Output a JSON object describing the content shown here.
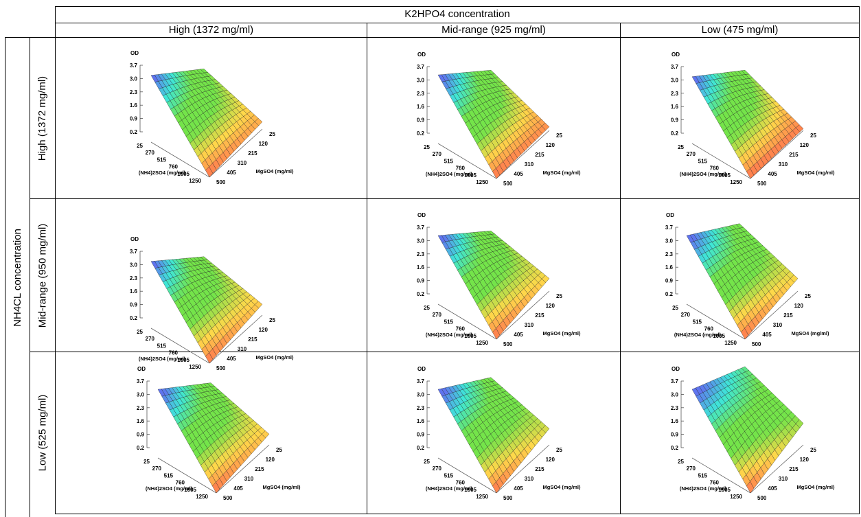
{
  "table": {
    "column_group_header": "K2HPO4 concentration",
    "column_headers": [
      "High (1372 mg/ml)",
      "Mid-range (925 mg/ml)",
      "Low (475 mg/ml)"
    ],
    "row_group_header": "NH4CL concentration",
    "row_headers": [
      "High (1372 mg/ml)",
      "Mid-range (950 mg/ml)",
      "Low (525 mg/ml)"
    ]
  },
  "colors": {
    "surface_low": "#ff6f4f",
    "surface_mid_low": "#ffd84a",
    "surface_mid": "#74e44a",
    "surface_mid_high": "#3fe6d7",
    "surface_high": "#5f74ef",
    "mesh_line": "#222222"
  },
  "chart_data": [
    {
      "type": "surface",
      "row": "High (1372 mg/ml)",
      "col": "High (1372 mg/ml)",
      "zlabel": "OD",
      "xlabel": "(NH4)2SO4 (mg/ml)",
      "ylabel": "MgSO4 (mg/ml)",
      "z_ticks": [
        "3.7",
        "3.0",
        "2.3",
        "1.6",
        "0.9",
        "0.2"
      ],
      "x_ticks": [
        "25",
        "270",
        "515",
        "760",
        "1005",
        "1250"
      ],
      "y_ticks": [
        "500",
        "405",
        "310",
        "215",
        "120",
        "25"
      ],
      "zlim": [
        0.2,
        3.7
      ],
      "xlim": [
        25,
        1250
      ],
      "ylim": [
        25,
        500
      ],
      "corner_z": {
        "x_min_y_min": 1.6,
        "x_min_y_max": 3.9,
        "x_max_y_min": 0.6,
        "x_max_y_max": 0.2
      }
    },
    {
      "type": "surface",
      "row": "High (1372 mg/ml)",
      "col": "Mid-range (925 mg/ml)",
      "zlabel": "OD",
      "xlabel": "(NH4)2SO4 (mg/ml)",
      "ylabel": "MgSO4 (mg/ml)",
      "z_ticks": [
        "3.7",
        "3.0",
        "2.3",
        "1.6",
        "0.9",
        "0.2"
      ],
      "x_ticks": [
        "25",
        "270",
        "515",
        "760",
        "1005",
        "1250"
      ],
      "y_ticks": [
        "500",
        "405",
        "310",
        "215",
        "120",
        "25"
      ],
      "zlim": [
        0.2,
        3.7
      ],
      "xlim": [
        25,
        1250
      ],
      "ylim": [
        25,
        500
      ],
      "corner_z": {
        "x_min_y_min": 1.6,
        "x_min_y_max": 4.0,
        "x_max_y_min": 0.4,
        "x_max_y_max": 0.2
      }
    },
    {
      "type": "surface",
      "row": "High (1372 mg/ml)",
      "col": "Low (475 mg/ml)",
      "zlabel": "OD",
      "xlabel": "(NH4)2SO4 (mg/ml)",
      "ylabel": "MgSO4 (mg/ml)",
      "z_ticks": [
        "3.7",
        "3.0",
        "2.3",
        "1.6",
        "0.9",
        "0.2"
      ],
      "x_ticks": [
        "25",
        "270",
        "515",
        "760",
        "1005",
        "1250"
      ],
      "y_ticks": [
        "500",
        "405",
        "310",
        "215",
        "120",
        "25"
      ],
      "zlim": [
        0.2,
        3.7
      ],
      "xlim": [
        25,
        1250
      ],
      "ylim": [
        25,
        500
      ],
      "corner_z": {
        "x_min_y_min": 1.6,
        "x_min_y_max": 3.9,
        "x_max_y_min": 0.3,
        "x_max_y_max": 0.2
      }
    },
    {
      "type": "surface",
      "row": "Mid-range (950 mg/ml)",
      "col": "High (1372 mg/ml)",
      "zlabel": "OD",
      "xlabel": "(NH4)2SO4 (mg/ml)",
      "ylabel": "MgSO4 (mg/ml)",
      "z_ticks": [
        "3.7",
        "3.0",
        "2.3",
        "1.6",
        "0.9",
        "0.2"
      ],
      "x_ticks": [
        "25",
        "270",
        "515",
        "760",
        "1005",
        "1250"
      ],
      "y_ticks": [
        "500",
        "405",
        "310",
        "215",
        "120",
        "25"
      ],
      "zlim": [
        0.2,
        3.7
      ],
      "xlim": [
        25,
        1250
      ],
      "ylim": [
        25,
        500
      ],
      "corner_z": {
        "x_min_y_min": 1.5,
        "x_min_y_max": 3.9,
        "x_max_y_min": 0.8,
        "x_max_y_max": 0.2
      }
    },
    {
      "type": "surface",
      "row": "Mid-range (950 mg/ml)",
      "col": "Mid-range (925 mg/ml)",
      "zlabel": "OD",
      "xlabel": "(NH4)2SO4 (mg/ml)",
      "ylabel": "MgSO4 (mg/ml)",
      "z_ticks": [
        "3.7",
        "3.0",
        "2.3",
        "1.6",
        "0.9",
        "0.2"
      ],
      "x_ticks": [
        "25",
        "270",
        "515",
        "760",
        "1005",
        "1250"
      ],
      "y_ticks": [
        "500",
        "405",
        "310",
        "215",
        "120",
        "25"
      ],
      "zlim": [
        0.2,
        3.7
      ],
      "xlim": [
        25,
        1250
      ],
      "ylim": [
        25,
        500
      ],
      "corner_z": {
        "x_min_y_min": 1.6,
        "x_min_y_max": 4.0,
        "x_max_y_min": 0.9,
        "x_max_y_max": 0.2
      }
    },
    {
      "type": "surface",
      "row": "Mid-range (950 mg/ml)",
      "col": "Low (475 mg/ml)",
      "zlabel": "OD",
      "xlabel": "(NH4)2SO4 (mg/ml)",
      "ylabel": "MgSO4 (mg/ml)",
      "z_ticks": [
        "3.7",
        "3.0",
        "2.3",
        "1.6",
        "0.9",
        "0.2"
      ],
      "x_ticks": [
        "25",
        "270",
        "515",
        "760",
        "1005",
        "1250"
      ],
      "y_ticks": [
        "500",
        "405",
        "310",
        "215",
        "120",
        "25"
      ],
      "zlim": [
        0.2,
        3.7
      ],
      "xlim": [
        25,
        1250
      ],
      "ylim": [
        25,
        500
      ],
      "corner_z": {
        "x_min_y_min": 2.0,
        "x_min_y_max": 4.0,
        "x_max_y_min": 0.9,
        "x_max_y_max": 0.2
      }
    },
    {
      "type": "surface",
      "row": "Low (525 mg/ml)",
      "col": "High (1372 mg/ml)",
      "zlabel": "OD",
      "xlabel": "(NH4)2SO4 (mg/ml)",
      "ylabel": "MgSO4 (mg/ml)",
      "z_ticks": [
        "3.7",
        "3.0",
        "2.3",
        "1.6",
        "0.9",
        "0.2"
      ],
      "x_ticks": [
        "25",
        "270",
        "515",
        "760",
        "1005",
        "1250"
      ],
      "y_ticks": [
        "500",
        "405",
        "310",
        "215",
        "120",
        "25"
      ],
      "zlim": [
        0.2,
        3.7
      ],
      "xlim": [
        25,
        1250
      ],
      "ylim": [
        25,
        500
      ],
      "corner_z": {
        "x_min_y_min": 1.7,
        "x_min_y_max": 4.0,
        "x_max_y_min": 0.8,
        "x_max_y_max": 0.2
      }
    },
    {
      "type": "surface",
      "row": "Low (525 mg/ml)",
      "col": "Mid-range (925 mg/ml)",
      "zlabel": "OD",
      "xlabel": "(NH4)2SO4 (mg/ml)",
      "ylabel": "MgSO4 (mg/ml)",
      "z_ticks": [
        "3.7",
        "3.0",
        "2.3",
        "1.6",
        "0.9",
        "0.2"
      ],
      "x_ticks": [
        "25",
        "270",
        "515",
        "760",
        "1005",
        "1250"
      ],
      "y_ticks": [
        "500",
        "405",
        "310",
        "215",
        "120",
        "25"
      ],
      "zlim": [
        0.2,
        3.7
      ],
      "xlim": [
        25,
        1250
      ],
      "ylim": [
        25,
        500
      ],
      "corner_z": {
        "x_min_y_min": 2.0,
        "x_min_y_max": 4.0,
        "x_max_y_min": 1.1,
        "x_max_y_max": 0.2
      }
    },
    {
      "type": "surface",
      "row": "Low (525 mg/ml)",
      "col": "Low (475 mg/ml)",
      "zlabel": "OD",
      "xlabel": "(NH4)2SO4 (mg/ml)",
      "ylabel": "MgSO4 (mg/ml)",
      "z_ticks": [
        "3.7",
        "3.0",
        "2.3",
        "1.6",
        "0.9",
        "0.2"
      ],
      "x_ticks": [
        "25",
        "270",
        "515",
        "760",
        "1005",
        "1250"
      ],
      "y_ticks": [
        "500",
        "405",
        "310",
        "215",
        "120",
        "25"
      ],
      "zlim": [
        0.2,
        3.7
      ],
      "xlim": [
        25,
        1250
      ],
      "ylim": [
        25,
        500
      ],
      "corner_z": {
        "x_min_y_min": 2.6,
        "x_min_y_max": 4.0,
        "x_max_y_min": 1.4,
        "x_max_y_max": 0.2
      }
    }
  ]
}
